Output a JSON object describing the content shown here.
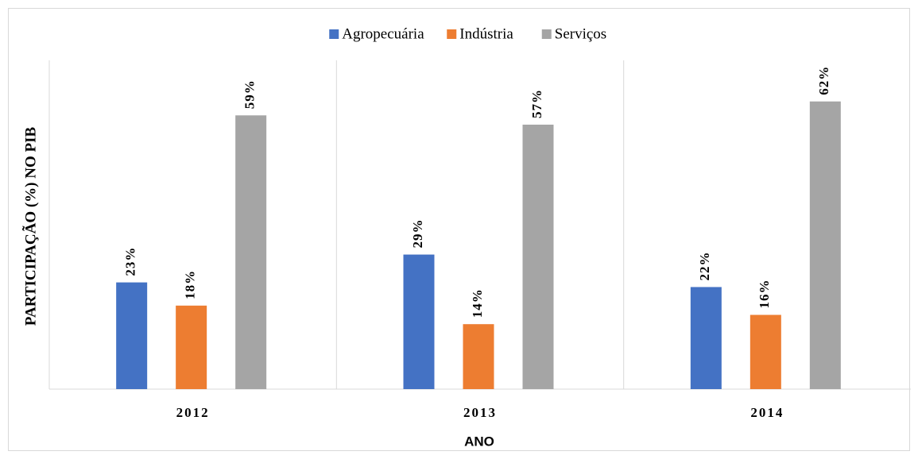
{
  "chart_data": {
    "type": "bar",
    "categories": [
      "2012",
      "2013",
      "2014"
    ],
    "series": [
      {
        "name": "Agropecuária",
        "color": "#4472c4",
        "values": [
          23,
          29,
          22
        ],
        "value_labels": [
          "23%",
          "29%",
          "22%"
        ]
      },
      {
        "name": "Indústria",
        "color": "#ed7d31",
        "values": [
          18,
          14,
          16
        ],
        "value_labels": [
          "18%",
          "14%",
          "16%"
        ]
      },
      {
        "name": "Serviços",
        "color": "#a5a5a5",
        "values": [
          59,
          57,
          62
        ],
        "value_labels": [
          "59%",
          "57%",
          "62%"
        ]
      }
    ],
    "x_label": "ANO",
    "y_label": "PARTICIPAÇÃO (%) NO PIB",
    "ylim": [
      0,
      70
    ],
    "legend": "top"
  }
}
